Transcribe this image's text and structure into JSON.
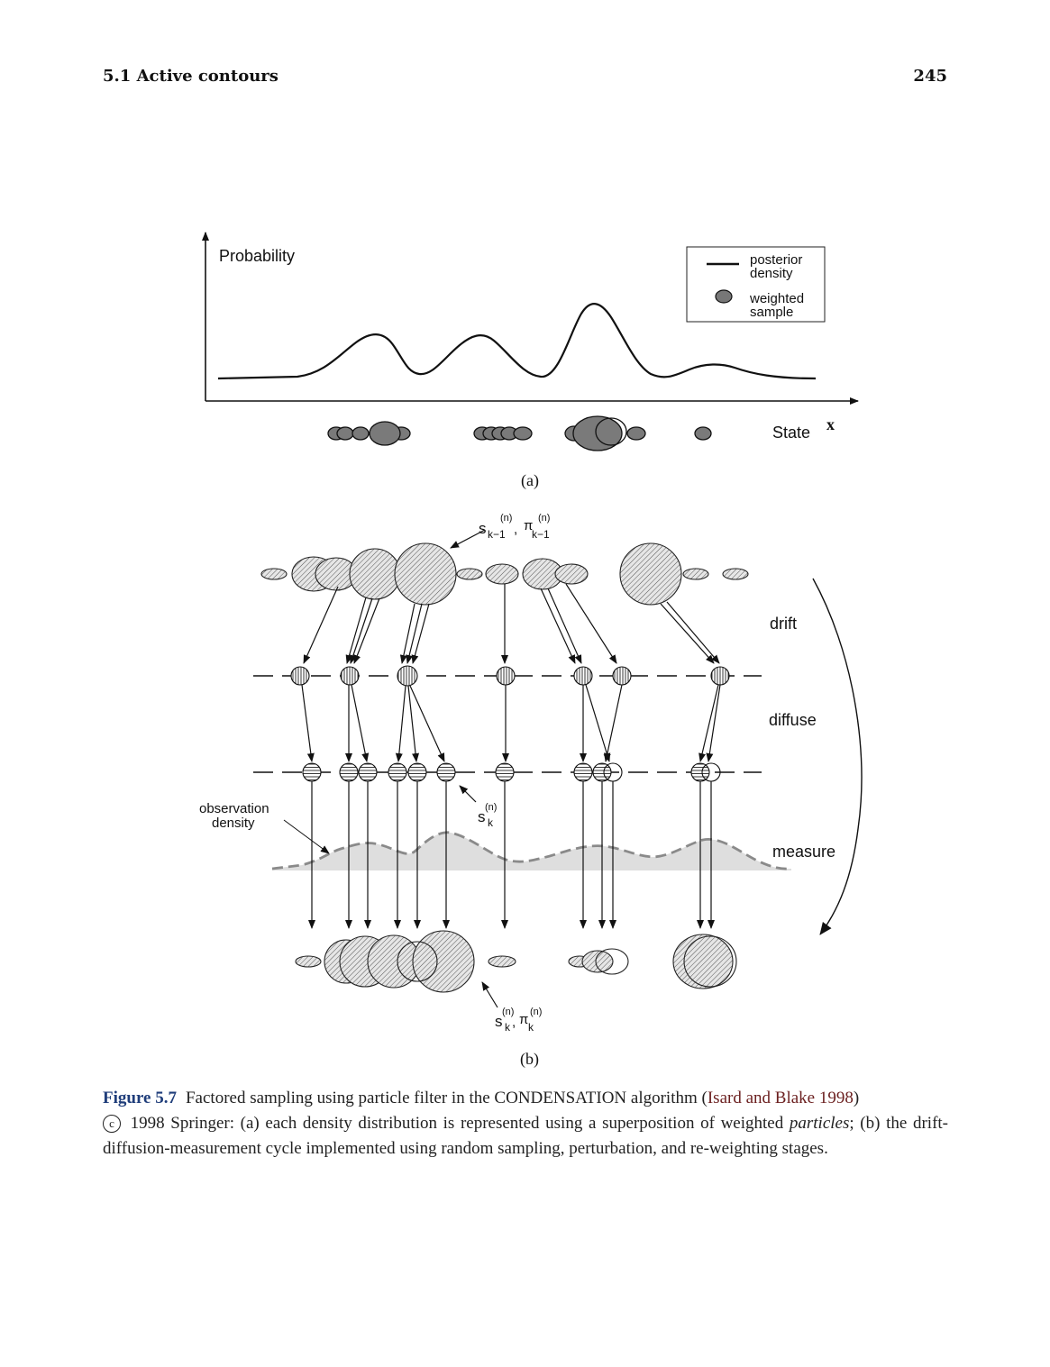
{
  "header": {
    "section": "5.1 Active contours",
    "page_number": "245"
  },
  "panel_a": {
    "y_label": "Probability",
    "x_label": "State",
    "x_symbol": "x",
    "legend": {
      "line_label_1": "posterior",
      "line_label_2": "density",
      "dot_label_1": "weighted",
      "dot_label_2": "sample"
    },
    "tag": "(a)"
  },
  "panel_b": {
    "top_label": {
      "s": "s",
      "sup1": "(n)",
      "sub1": "k−1",
      "comma": ",",
      "pi": "π",
      "sup2": "(n)",
      "sub2": "k−1"
    },
    "mid_label": {
      "s": "s",
      "sup": "(n)",
      "sub": "k"
    },
    "bottom_label": {
      "s": "s",
      "sup1": "(n)",
      "sub1": "k",
      "comma": ",",
      "pi": "π",
      "sup2": "(n)",
      "sub2": "k"
    },
    "stage_drift": "drift",
    "stage_diffuse": "diffuse",
    "stage_measure": "measure",
    "observation_label_1": "observation",
    "observation_label_2": "density",
    "tag": "(b)"
  },
  "caption": {
    "figure_label": "Figure 5.7",
    "text_1": "Factored sampling using particle filter in the CONDENSATION algorithm (",
    "citation": "Isard and Blake 1998",
    "text_2": ")",
    "copyright_symbol": "c",
    "text_3": " 1998 Springer: (a) each density distribution is represented using a superposition of weighted ",
    "italic_word": "particles",
    "text_4": "; (b) the drift-diffusion-measurement cycle implemented using random sampling, perturbation, and re-weighting stages."
  }
}
